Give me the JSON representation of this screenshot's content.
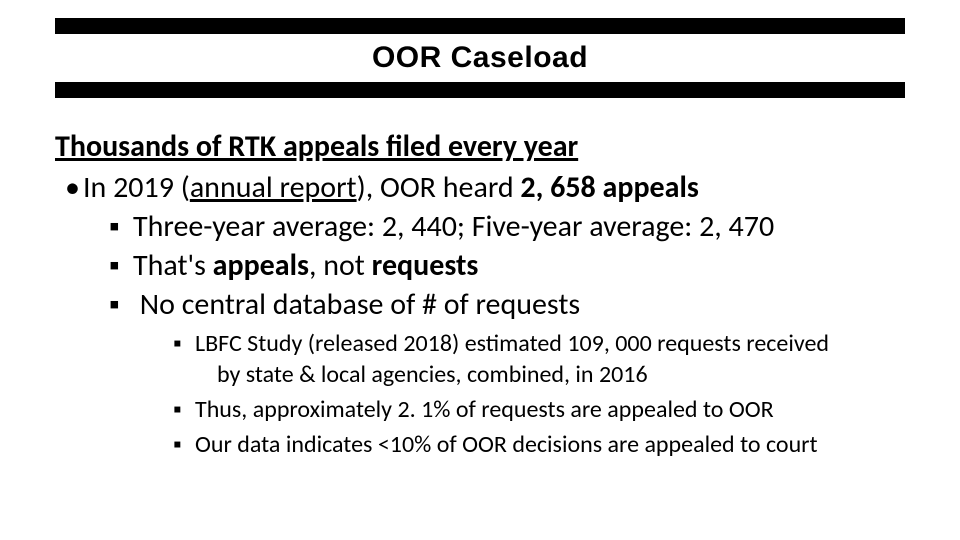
{
  "title": "OOR Caseload",
  "heading": "Thousands of RTK appeals filed every year",
  "bullet_l1": {
    "pre": "In 2019 (",
    "link": "annual report",
    "post": "), OOR heard ",
    "bold": "2, 658 appeals"
  },
  "bullets_l2": [
    {
      "text": "Three-year average: 2, 440; Five-year average: 2, 470"
    },
    {
      "pre": "That's ",
      "b1": "appeals",
      "mid": ", not ",
      "b2": "requests"
    },
    {
      "text": " No central database of # of requests"
    }
  ],
  "bullets_l3": [
    {
      "line1": "LBFC Study (released 2018) estimated 109, 000 requests received",
      "line2": "by state & local agencies, combined, in 2016"
    },
    {
      "line1": "Thus, approximately 2. 1% of requests are appealed to OOR"
    },
    {
      "line1": "Our data indicates <10% of OOR decisions are appealed to court"
    }
  ],
  "colors": {
    "background": "#ffffff",
    "title_bar": "#000000",
    "text": "#000000"
  },
  "fonts": {
    "title_family": "Arial Black",
    "body_family": "Calibri",
    "title_size_pt": 30,
    "heading_size_pt": 30,
    "l1_size_pt": 30,
    "l2_size_pt": 30,
    "l3_size_pt": 24
  }
}
